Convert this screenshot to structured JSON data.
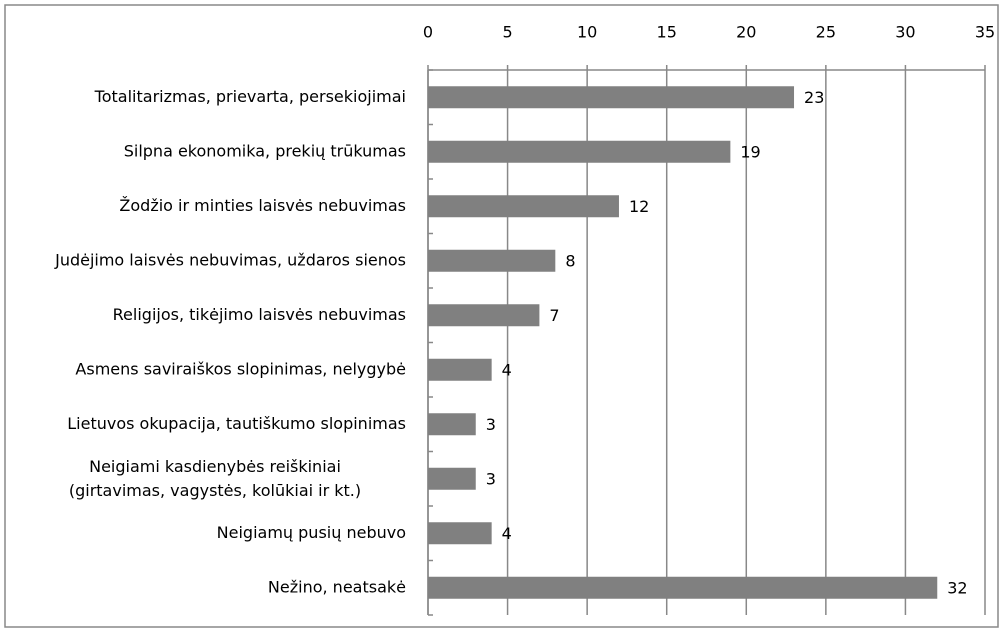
{
  "chart_data": {
    "type": "barh",
    "categories": [
      "Totalitarizmas, prievarta, persekiojimai",
      "Silpna ekonomika, prekių trūkumas",
      "Žodžio ir minties laisvės nebuvimas",
      "Judėjimo laisvės nebuvimas, uždaros sienos",
      "Religijos, tikėjimo laisvės nebuvimas",
      "Asmens saviraiškos slopinimas, nelygybė",
      "Lietuvos okupacija, tautiškumo slopinimas",
      "Neigiami kasdienybės reiškiniai\n(girtavimas, vagystės, kolūkiai ir kt.)",
      "Neigiamų pusių nebuvo",
      "Nežino, neatsakė"
    ],
    "values": [
      23,
      19,
      12,
      8,
      7,
      4,
      3,
      3,
      4,
      32
    ],
    "color": "#808080",
    "xlim": [
      0,
      35
    ],
    "xticks": [
      0,
      5,
      10,
      15,
      20,
      25,
      30,
      35
    ],
    "grid": true
  }
}
